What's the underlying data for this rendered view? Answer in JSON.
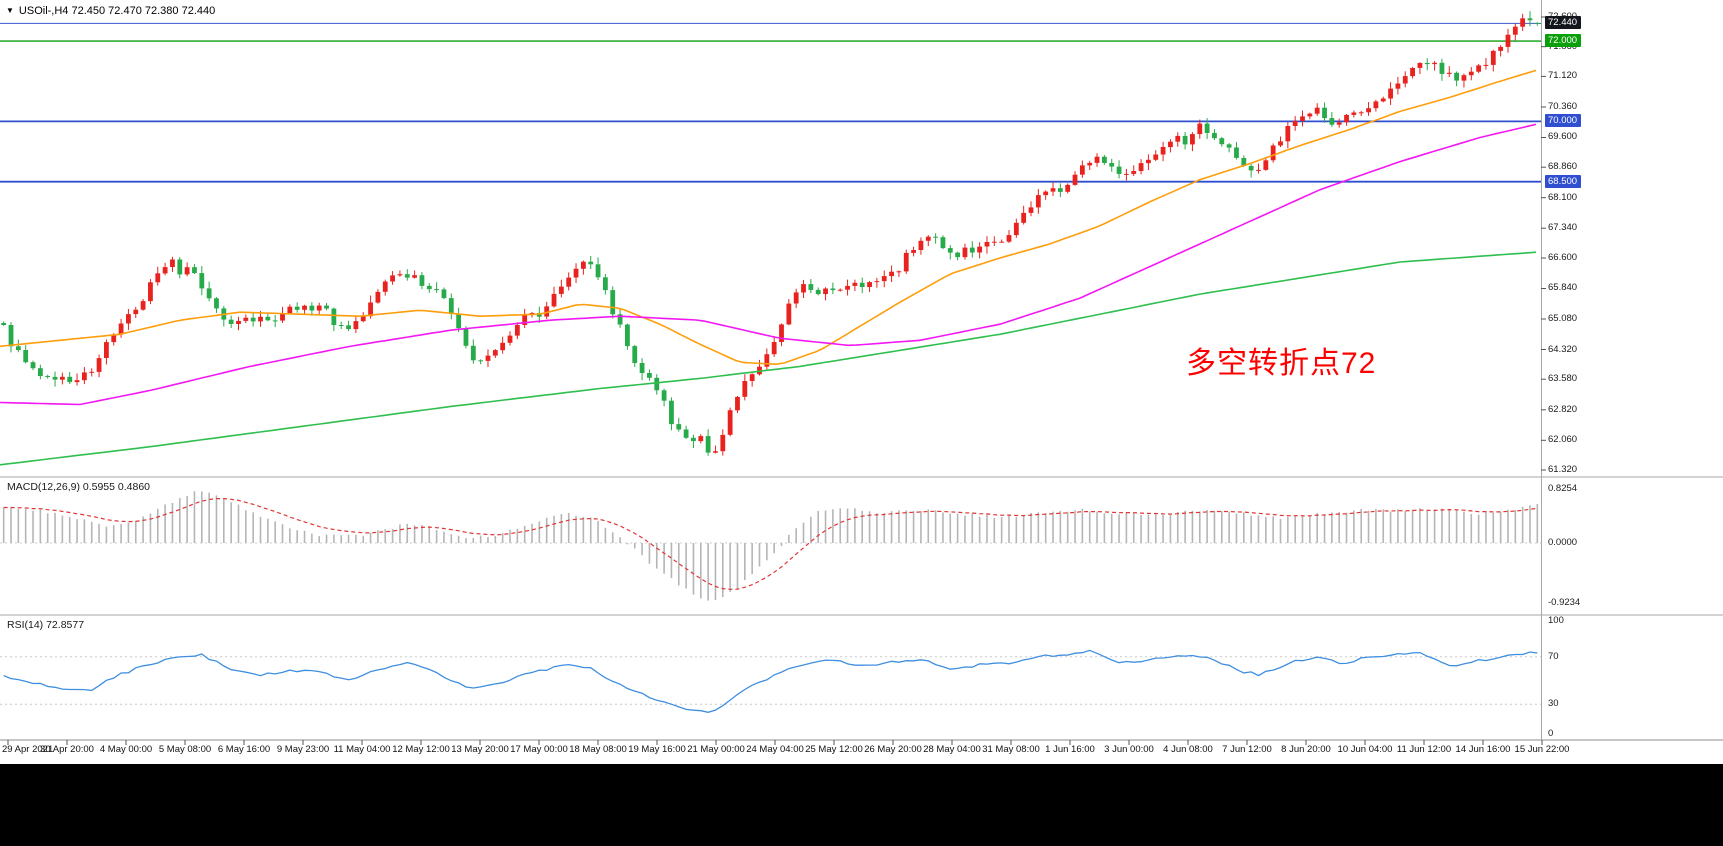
{
  "header": {
    "dropdown_glyph": "▼",
    "symbol_info": "USOil-,H4  72.450 72.470 72.380 72.440"
  },
  "annotation": {
    "text": "多空转折点72",
    "color": "#ff0000"
  },
  "indicators": {
    "macd_label": "MACD(12,26,9) 0.5955 0.4860",
    "rsi_label": "RSI(14) 72.8577"
  },
  "time_axis": {
    "labels": [
      "29 Apr 2021",
      "30 Apr 20:00",
      "4 May 00:00",
      "5 May 08:00",
      "6 May 16:00",
      "9 May 23:00",
      "11 May 04:00",
      "12 May 12:00",
      "13 May 20:00",
      "17 May 00:00",
      "18 May 08:00",
      "19 May 16:00",
      "21 May 00:00",
      "24 May 04:00",
      "25 May 12:00",
      "26 May 20:00",
      "28 May 04:00",
      "31 May 08:00",
      "1 Jun 16:00",
      "3 Jun 00:00",
      "4 Jun 08:00",
      "7 Jun 12:00",
      "8 Jun 20:00",
      "10 Jun 04:00",
      "11 Jun 12:00",
      "14 Jun 16:00",
      "15 Jun 22:00"
    ]
  },
  "chart_data": {
    "type": "candlestick",
    "symbol": "USOil-",
    "timeframe": "H4",
    "current_bar": {
      "open": 72.45,
      "high": 72.47,
      "low": 72.38,
      "close": 72.44
    },
    "y_axis": {
      "min": 61.32,
      "max": 72.6
    },
    "price_axis_ticks": [
      "72.600",
      "71.860",
      "71.120",
      "70.360",
      "69.600",
      "68.860",
      "68.100",
      "67.340",
      "66.600",
      "65.840",
      "65.080",
      "64.320",
      "63.580",
      "62.820",
      "62.060",
      "61.320"
    ],
    "price_markers": [
      {
        "label": "72.440",
        "price": 72.44,
        "line_color": "#3a55cf",
        "label_bg": "#14161d",
        "line_width": 1
      },
      {
        "label": "72.000",
        "price": 72.0,
        "line_color": "#0c9f0c",
        "label_bg": "#0c9f0c",
        "line_width": 1.4
      },
      {
        "label": "70.000",
        "price": 70.0,
        "line_color": "#2f4fd0",
        "label_bg": "#2f4fd0",
        "line_width": 1.8
      },
      {
        "label": "68.500",
        "price": 68.5,
        "line_color": "#2f4fd0",
        "label_bg": "#2f4fd0",
        "line_width": 1.8
      }
    ],
    "candle_colors": {
      "up": "#e8221e",
      "down": "#27aa49"
    },
    "price_path": [
      [
        0,
        65.0
      ],
      [
        15,
        64.3
      ],
      [
        30,
        63.9
      ],
      [
        45,
        63.5
      ],
      [
        60,
        63.7
      ],
      [
        75,
        63.5
      ],
      [
        90,
        63.8
      ],
      [
        105,
        64.4
      ],
      [
        120,
        64.9
      ],
      [
        135,
        65.3
      ],
      [
        150,
        65.9
      ],
      [
        160,
        66.3
      ],
      [
        170,
        66.6
      ],
      [
        180,
        66.2
      ],
      [
        190,
        66.4
      ],
      [
        200,
        66.0
      ],
      [
        215,
        65.4
      ],
      [
        230,
        64.9
      ],
      [
        245,
        65.0
      ],
      [
        260,
        65.2
      ],
      [
        275,
        65.1
      ],
      [
        290,
        65.4
      ],
      [
        305,
        65.3
      ],
      [
        320,
        65.5
      ],
      [
        335,
        65.0
      ],
      [
        350,
        64.7
      ],
      [
        365,
        65.3
      ],
      [
        380,
        65.9
      ],
      [
        395,
        66.3
      ],
      [
        410,
        66.2
      ],
      [
        425,
        65.8
      ],
      [
        435,
        66.0
      ],
      [
        450,
        65.2
      ],
      [
        465,
        64.5
      ],
      [
        478,
        63.9
      ],
      [
        490,
        64.1
      ],
      [
        505,
        64.6
      ],
      [
        520,
        65.1
      ],
      [
        535,
        65.2
      ],
      [
        548,
        65.3
      ],
      [
        560,
        65.9
      ],
      [
        572,
        66.3
      ],
      [
        582,
        66.6
      ],
      [
        592,
        66.3
      ],
      [
        602,
        65.9
      ],
      [
        614,
        65.2
      ],
      [
        626,
        64.5
      ],
      [
        638,
        63.7
      ],
      [
        650,
        63.5
      ],
      [
        662,
        63.1
      ],
      [
        672,
        62.5
      ],
      [
        684,
        62.1
      ],
      [
        692,
        61.9
      ],
      [
        700,
        62.3
      ],
      [
        708,
        61.8
      ],
      [
        714,
        61.6
      ],
      [
        722,
        62.2
      ],
      [
        732,
        62.9
      ],
      [
        742,
        63.4
      ],
      [
        755,
        63.8
      ],
      [
        768,
        64.2
      ],
      [
        780,
        64.9
      ],
      [
        792,
        65.6
      ],
      [
        802,
        65.9
      ],
      [
        815,
        65.7
      ],
      [
        828,
        65.9
      ],
      [
        840,
        65.8
      ],
      [
        852,
        66.0
      ],
      [
        865,
        65.9
      ],
      [
        880,
        66.1
      ],
      [
        897,
        66.3
      ],
      [
        910,
        66.8
      ],
      [
        925,
        67.2
      ],
      [
        940,
        67.0
      ],
      [
        955,
        66.7
      ],
      [
        970,
        66.8
      ],
      [
        985,
        67.1
      ],
      [
        1000,
        67.0
      ],
      [
        1014,
        67.3
      ],
      [
        1030,
        67.9
      ],
      [
        1045,
        68.3
      ],
      [
        1060,
        68.2
      ],
      [
        1072,
        68.5
      ],
      [
        1085,
        68.9
      ],
      [
        1100,
        69.1
      ],
      [
        1115,
        68.8
      ],
      [
        1128,
        68.6
      ],
      [
        1145,
        69.0
      ],
      [
        1160,
        69.3
      ],
      [
        1175,
        69.6
      ],
      [
        1188,
        69.5
      ],
      [
        1200,
        69.9
      ],
      [
        1215,
        69.5
      ],
      [
        1230,
        69.3
      ],
      [
        1248,
        68.9
      ],
      [
        1260,
        68.7
      ],
      [
        1275,
        69.4
      ],
      [
        1290,
        69.9
      ],
      [
        1306,
        70.1
      ],
      [
        1320,
        70.3
      ],
      [
        1335,
        69.9
      ],
      [
        1350,
        70.1
      ],
      [
        1365,
        70.3
      ],
      [
        1380,
        70.6
      ],
      [
        1395,
        70.9
      ],
      [
        1410,
        71.2
      ],
      [
        1423,
        71.5
      ],
      [
        1440,
        71.3
      ],
      [
        1455,
        71.0
      ],
      [
        1470,
        71.2
      ],
      [
        1483,
        71.4
      ],
      [
        1496,
        71.8
      ],
      [
        1510,
        72.2
      ],
      [
        1524,
        72.5
      ],
      [
        1540,
        72.44
      ]
    ],
    "moving_averages": [
      {
        "name": "ma-fast",
        "color": "#ff9d0a",
        "points": [
          [
            0,
            64.4
          ],
          [
            60,
            64.55
          ],
          [
            120,
            64.7
          ],
          [
            180,
            65.05
          ],
          [
            240,
            65.25
          ],
          [
            300,
            65.2
          ],
          [
            360,
            65.15
          ],
          [
            420,
            65.3
          ],
          [
            480,
            65.15
          ],
          [
            540,
            65.2
          ],
          [
            580,
            65.45
          ],
          [
            620,
            65.35
          ],
          [
            660,
            64.95
          ],
          [
            700,
            64.45
          ],
          [
            740,
            64.0
          ],
          [
            780,
            63.95
          ],
          [
            820,
            64.3
          ],
          [
            860,
            64.9
          ],
          [
            900,
            65.5
          ],
          [
            950,
            66.2
          ],
          [
            1000,
            66.6
          ],
          [
            1050,
            66.95
          ],
          [
            1100,
            67.4
          ],
          [
            1150,
            68.0
          ],
          [
            1200,
            68.55
          ],
          [
            1250,
            68.95
          ],
          [
            1300,
            69.4
          ],
          [
            1350,
            69.8
          ],
          [
            1400,
            70.25
          ],
          [
            1450,
            70.6
          ],
          [
            1500,
            71.0
          ],
          [
            1540,
            71.3
          ]
        ]
      },
      {
        "name": "ma-mid",
        "color": "#f318f3",
        "points": [
          [
            0,
            63.0
          ],
          [
            80,
            62.95
          ],
          [
            150,
            63.3
          ],
          [
            250,
            63.9
          ],
          [
            350,
            64.4
          ],
          [
            450,
            64.8
          ],
          [
            550,
            65.05
          ],
          [
            620,
            65.15
          ],
          [
            700,
            65.05
          ],
          [
            780,
            64.6
          ],
          [
            850,
            64.42
          ],
          [
            920,
            64.55
          ],
          [
            1000,
            64.95
          ],
          [
            1080,
            65.6
          ],
          [
            1160,
            66.5
          ],
          [
            1240,
            67.4
          ],
          [
            1320,
            68.3
          ],
          [
            1400,
            69.0
          ],
          [
            1480,
            69.6
          ],
          [
            1540,
            69.95
          ]
        ]
      },
      {
        "name": "ma-slow",
        "color": "#2fbf4f",
        "points": [
          [
            0,
            61.45
          ],
          [
            150,
            61.9
          ],
          [
            300,
            62.4
          ],
          [
            450,
            62.9
          ],
          [
            600,
            63.35
          ],
          [
            700,
            63.6
          ],
          [
            800,
            63.9
          ],
          [
            900,
            64.3
          ],
          [
            1000,
            64.7
          ],
          [
            1100,
            65.2
          ],
          [
            1200,
            65.7
          ],
          [
            1300,
            66.1
          ],
          [
            1400,
            66.5
          ],
          [
            1540,
            66.75
          ]
        ]
      }
    ],
    "macd": {
      "axis": [
        "0.8254",
        "0.0000",
        "-0.9234"
      ],
      "bar_color": "#b5b5b5",
      "signal_color": "#e03636",
      "main_path": [
        [
          0,
          0.55
        ],
        [
          40,
          0.5
        ],
        [
          80,
          0.35
        ],
        [
          115,
          0.25
        ],
        [
          145,
          0.4
        ],
        [
          175,
          0.65
        ],
        [
          200,
          0.82
        ],
        [
          230,
          0.65
        ],
        [
          260,
          0.4
        ],
        [
          290,
          0.22
        ],
        [
          320,
          0.12
        ],
        [
          355,
          0.1
        ],
        [
          385,
          0.2
        ],
        [
          410,
          0.3
        ],
        [
          440,
          0.2
        ],
        [
          470,
          0.07
        ],
        [
          500,
          0.13
        ],
        [
          530,
          0.3
        ],
        [
          565,
          0.45
        ],
        [
          590,
          0.4
        ],
        [
          620,
          0.1
        ],
        [
          650,
          -0.3
        ],
        [
          680,
          -0.65
        ],
        [
          710,
          -0.92
        ],
        [
          740,
          -0.65
        ],
        [
          760,
          -0.35
        ],
        [
          780,
          -0.05
        ],
        [
          800,
          0.3
        ],
        [
          820,
          0.5
        ],
        [
          845,
          0.55
        ],
        [
          880,
          0.45
        ],
        [
          920,
          0.5
        ],
        [
          960,
          0.45
        ],
        [
          1000,
          0.4
        ],
        [
          1040,
          0.45
        ],
        [
          1080,
          0.52
        ],
        [
          1120,
          0.45
        ],
        [
          1160,
          0.42
        ],
        [
          1200,
          0.5
        ],
        [
          1240,
          0.45
        ],
        [
          1280,
          0.38
        ],
        [
          1320,
          0.45
        ],
        [
          1360,
          0.5
        ],
        [
          1400,
          0.5
        ],
        [
          1440,
          0.52
        ],
        [
          1480,
          0.45
        ],
        [
          1510,
          0.5
        ],
        [
          1540,
          0.6
        ]
      ]
    },
    "rsi": {
      "axis": [
        "100",
        "70",
        "30",
        "0"
      ],
      "line_color": "#3f8fe0",
      "levels": [
        70,
        30
      ],
      "path": [
        [
          0,
          55
        ],
        [
          30,
          48
        ],
        [
          60,
          44
        ],
        [
          90,
          42
        ],
        [
          120,
          55
        ],
        [
          150,
          64
        ],
        [
          180,
          70
        ],
        [
          200,
          72
        ],
        [
          230,
          60
        ],
        [
          260,
          55
        ],
        [
          290,
          58
        ],
        [
          320,
          57
        ],
        [
          350,
          50
        ],
        [
          380,
          60
        ],
        [
          410,
          65
        ],
        [
          440,
          55
        ],
        [
          470,
          43
        ],
        [
          500,
          48
        ],
        [
          530,
          56
        ],
        [
          565,
          63
        ],
        [
          590,
          60
        ],
        [
          620,
          46
        ],
        [
          650,
          36
        ],
        [
          680,
          28
        ],
        [
          710,
          22
        ],
        [
          730,
          34
        ],
        [
          750,
          45
        ],
        [
          770,
          52
        ],
        [
          790,
          60
        ],
        [
          810,
          65
        ],
        [
          830,
          68
        ],
        [
          860,
          62
        ],
        [
          890,
          65
        ],
        [
          920,
          68
        ],
        [
          950,
          60
        ],
        [
          980,
          63
        ],
        [
          1010,
          65
        ],
        [
          1040,
          70
        ],
        [
          1070,
          72
        ],
        [
          1090,
          75
        ],
        [
          1120,
          64
        ],
        [
          1150,
          68
        ],
        [
          1180,
          72
        ],
        [
          1210,
          69
        ],
        [
          1240,
          58
        ],
        [
          1260,
          55
        ],
        [
          1290,
          65
        ],
        [
          1320,
          70
        ],
        [
          1340,
          64
        ],
        [
          1360,
          68
        ],
        [
          1390,
          72
        ],
        [
          1420,
          74
        ],
        [
          1450,
          62
        ],
        [
          1470,
          65
        ],
        [
          1500,
          70
        ],
        [
          1530,
          73
        ]
      ]
    }
  }
}
